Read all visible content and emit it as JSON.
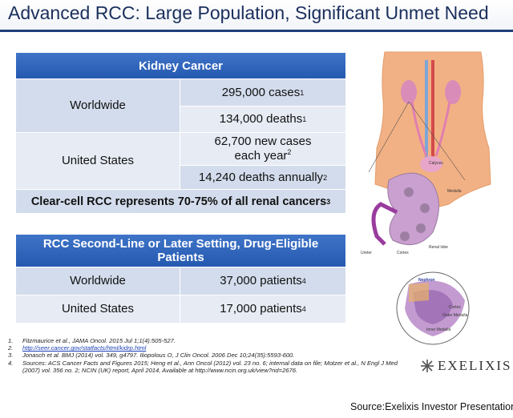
{
  "title": "Advanced RCC: Large Population, Significant Unmet Need",
  "kidney_table": {
    "header": "Kidney Cancer",
    "worldwide_label": "Worldwide",
    "worldwide_cases": "295,000 cases",
    "worldwide_cases_ref": "1",
    "worldwide_deaths": "134,000 deaths",
    "worldwide_deaths_ref": "1",
    "us_label": "United States",
    "us_new_cases_line1": "62,700 new cases",
    "us_new_cases_line2": "each year",
    "us_new_cases_ref": "2",
    "us_deaths": "14,240 deaths annually",
    "us_deaths_ref": "2",
    "footer": "Clear-cell RCC represents 70-75% of all renal cancers",
    "footer_ref": "3"
  },
  "rcc_table": {
    "header_line1": "RCC Second-Line or Later Setting, Drug-Eligible",
    "header_line2": "Patients",
    "rows": [
      {
        "label": "Worldwide",
        "value": "37,000 patients",
        "ref": "4"
      },
      {
        "label": "United States",
        "value": "17,000 patients",
        "ref": "4"
      }
    ]
  },
  "references": [
    {
      "num": "1.",
      "text": "Fitzmaurice et al., JAMA Oncol. 2015 Jul 1;1(4):505-527."
    },
    {
      "num": "2.",
      "text": "http://seer.cancer.gov/statfacts/html/kidrp.html",
      "is_link": true
    },
    {
      "num": "3.",
      "text": "Jonasch et al. BMJ (2014) vol. 349, g4797. Iliopolous O, J Clin Oncol. 2006 Dec 10;24(35):5593-600."
    },
    {
      "num": "4.",
      "text": "Sources: ACS Cancer Facts and Figures 2015; Heng et al., Ann Oncol (2012) vol. 23 no. 6; internal data on file; Motzer et al., N Engl J Med (2007) vol. 356 no. 2; NCIN (UK) report, April 2014, Available at http://www.ncin.org.uk/view?rid=2676."
    }
  ],
  "illustration": {
    "labels": {
      "calyces": "Calyces",
      "medulla": "Medulla",
      "ureter": "Ureter",
      "cortex": "Cortex",
      "renal_lobe": "Renal lobe",
      "nephron": "Nephron",
      "outer_medulla": "Outer Medulla",
      "inner_medulla": "Inner Medulla",
      "cortex_inset": "Cortex"
    }
  },
  "logo_text": "EXELIXIS",
  "source": "Source:Exelixis Investor Presentation",
  "colors": {
    "header_blue": "#2459b0",
    "cell_blue": "#d3dcec",
    "title_text": "#1a2f5c",
    "skin": "#f2b184"
  }
}
